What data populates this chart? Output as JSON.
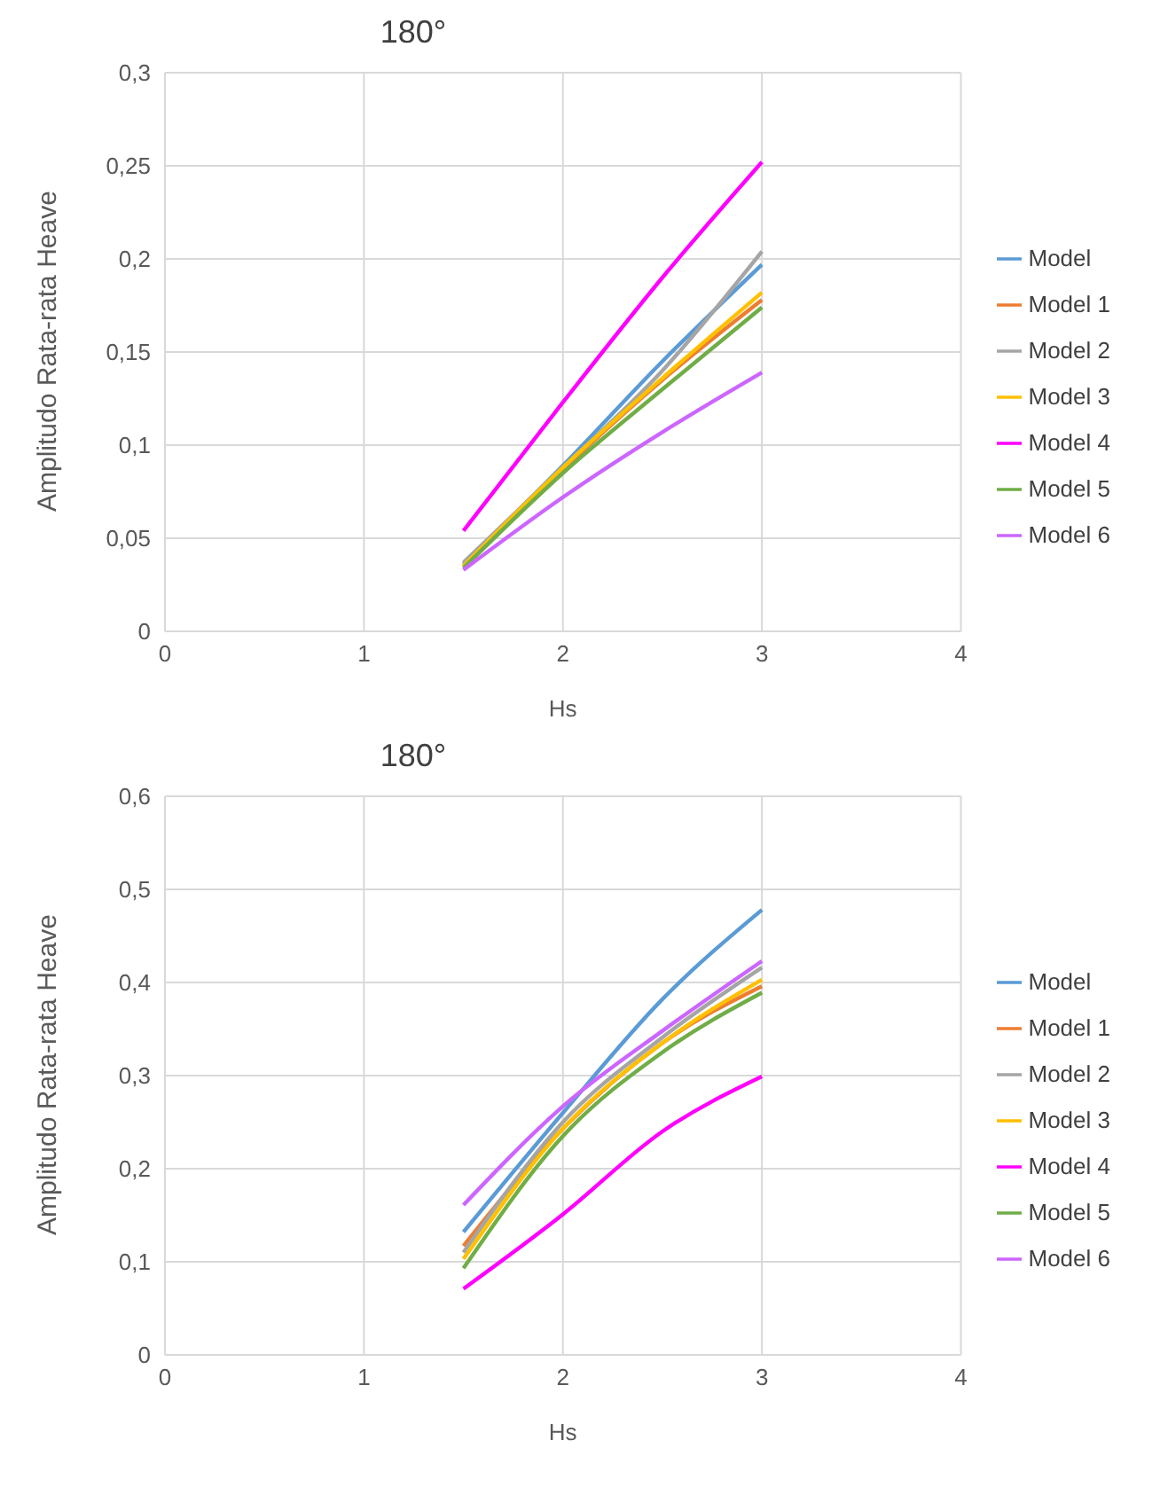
{
  "chart_data": [
    {
      "type": "line",
      "title": "180°",
      "xlabel": "Hs",
      "ylabel": "Amplitudo Rata-rata Heave",
      "x": [
        1.5,
        2,
        2.5,
        3
      ],
      "xlim": [
        0,
        4
      ],
      "xticks": [
        0,
        1,
        2,
        3,
        4
      ],
      "ylim": [
        0,
        0.3
      ],
      "yticks": [
        0,
        {
          "value": 0.05,
          "label": "0,05"
        },
        {
          "value": 0.1,
          "label": "0,1"
        },
        {
          "value": 0.15,
          "label": "0,15"
        },
        {
          "value": 0.2,
          "label": "0,2"
        },
        {
          "value": 0.25,
          "label": "0,25"
        },
        {
          "value": 0.3,
          "label": "0,3"
        }
      ],
      "grid": true,
      "legend": "right",
      "marker": "none",
      "line_style": "solid",
      "series": [
        {
          "name": "Model",
          "color": "#5b9bd5",
          "values": [
            0.036,
            0.089,
            0.145,
            0.197
          ]
        },
        {
          "name": "Model 1",
          "color": "#ed7d31",
          "values": [
            0.035,
            0.087,
            0.135,
            0.178
          ]
        },
        {
          "name": "Model 2",
          "color": "#a5a5a5",
          "values": [
            0.037,
            0.088,
            0.14,
            0.204
          ]
        },
        {
          "name": "Model 3",
          "color": "#ffc000",
          "values": [
            0.035,
            0.088,
            0.136,
            0.182
          ]
        },
        {
          "name": "Model 4",
          "color": "#ff00ff",
          "values": [
            0.054,
            0.123,
            0.19,
            0.252
          ]
        },
        {
          "name": "Model 5",
          "color": "#70ad47",
          "values": [
            0.034,
            0.085,
            0.13,
            0.174
          ]
        },
        {
          "name": "Model 6",
          "color": "#cc66ff",
          "values": [
            0.033,
            0.072,
            0.107,
            0.139
          ]
        }
      ]
    },
    {
      "type": "line",
      "title": "180°",
      "xlabel": "Hs",
      "ylabel": "Amplitudo Rata-rata Heave",
      "x": [
        1.5,
        2,
        2.5,
        3
      ],
      "xlim": [
        0,
        4
      ],
      "xticks": [
        0,
        1,
        2,
        3,
        4
      ],
      "ylim": [
        0,
        0.6
      ],
      "yticks": [
        0,
        {
          "value": 0.1,
          "label": "0,1"
        },
        {
          "value": 0.2,
          "label": "0,2"
        },
        {
          "value": 0.3,
          "label": "0,3"
        },
        {
          "value": 0.4,
          "label": "0,4"
        },
        {
          "value": 0.5,
          "label": "0,5"
        },
        {
          "value": 0.6,
          "label": "0,6"
        }
      ],
      "grid": true,
      "legend": "right",
      "marker": "none",
      "line_style": "solid",
      "series": [
        {
          "name": "Model",
          "color": "#5b9bd5",
          "values": [
            0.132,
            0.26,
            0.382,
            0.478
          ]
        },
        {
          "name": "Model 1",
          "color": "#ed7d31",
          "values": [
            0.117,
            0.243,
            0.335,
            0.396
          ]
        },
        {
          "name": "Model 2",
          "color": "#a5a5a5",
          "values": [
            0.11,
            0.25,
            0.341,
            0.416
          ]
        },
        {
          "name": "Model 3",
          "color": "#ffc000",
          "values": [
            0.103,
            0.243,
            0.335,
            0.403
          ]
        },
        {
          "name": "Model 4",
          "color": "#ff00ff",
          "values": [
            0.071,
            0.151,
            0.24,
            0.299
          ]
        },
        {
          "name": "Model 5",
          "color": "#70ad47",
          "values": [
            0.093,
            0.235,
            0.325,
            0.389
          ]
        },
        {
          "name": "Model 6",
          "color": "#cc66ff",
          "values": [
            0.161,
            0.267,
            0.348,
            0.423
          ]
        }
      ]
    }
  ]
}
